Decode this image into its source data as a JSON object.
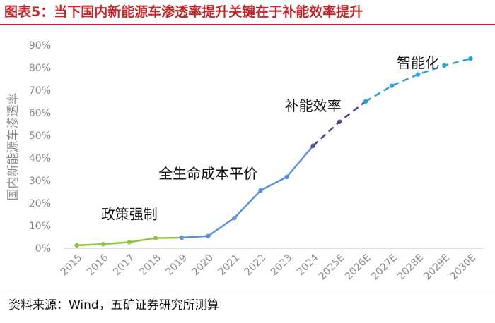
{
  "title": "图表5：当下国内新能源车渗透率提升关键在于补能效率提升",
  "source": "资料来源：Wind，五矿证券研究所测算",
  "chart_data": {
    "type": "line",
    "ylabel": "国内新能源车渗透率",
    "ylim": [
      0,
      90
    ],
    "y_ticks": [
      "0%",
      "10%",
      "20%",
      "30%",
      "40%",
      "50%",
      "60%",
      "70%",
      "80%",
      "90%"
    ],
    "categories": [
      "2015",
      "2016",
      "2017",
      "2018",
      "2019",
      "2020",
      "2021",
      "2022",
      "2023",
      "2024",
      "2025E",
      "2026E",
      "2027E",
      "2028E",
      "2029E",
      "2030E"
    ],
    "grid": false,
    "series": [
      {
        "phase": "政策强制",
        "color": "#8dc63f",
        "style": "solid",
        "x": [
          "2015",
          "2016",
          "2017",
          "2018",
          "2019"
        ],
        "values": [
          1.3,
          1.8,
          2.7,
          4.5,
          4.7
        ]
      },
      {
        "phase": "全生命成本平价",
        "color": "#5b8fdc",
        "style": "solid",
        "x": [
          "2019",
          "2020",
          "2021",
          "2022",
          "2023",
          "2024"
        ],
        "values": [
          4.7,
          5.4,
          13.4,
          25.6,
          31.6,
          45.4
        ]
      },
      {
        "phase": "补能效率",
        "color": "#5b3c8f",
        "style": "dashed",
        "x": [
          "2024",
          "2025E",
          "2026E"
        ],
        "values": [
          45.4,
          56,
          65
        ]
      },
      {
        "phase": "智能化",
        "color": "#29a3e0",
        "style": "dashed",
        "x": [
          "2026E",
          "2027E",
          "2028E",
          "2029E",
          "2030E"
        ],
        "values": [
          65,
          72,
          77,
          81,
          84
        ]
      }
    ],
    "annotations": [
      {
        "text": "政策强制",
        "x": "2017",
        "y": 13
      },
      {
        "text": "全生命成本平价",
        "x": "2020",
        "y": 31
      },
      {
        "text": "补能效率",
        "x": "2024",
        "y": 61
      },
      {
        "text": "智能化",
        "x": "2028E",
        "y": 80
      }
    ]
  }
}
